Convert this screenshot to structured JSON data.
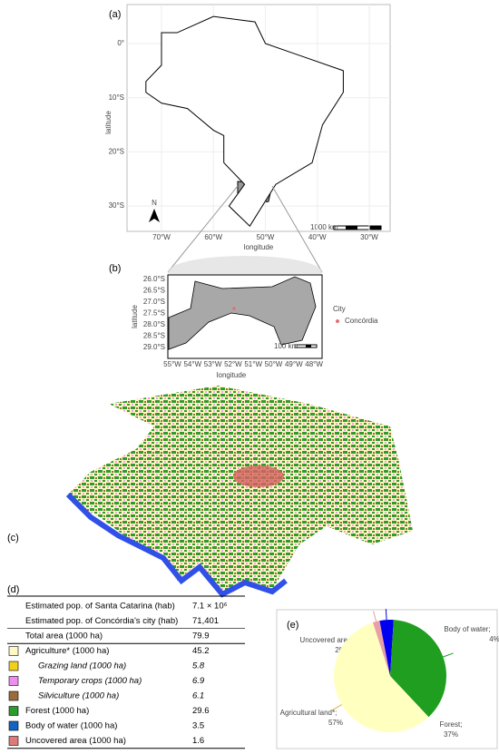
{
  "panel_a": {
    "label": "(a)",
    "x_label": "longitude",
    "y_label": "latitude",
    "xticks": [
      "70°W",
      "60°W",
      "50°W",
      "40°W",
      "30°W"
    ],
    "yticks": [
      "0°",
      "10°S",
      "20°S",
      "30°S"
    ],
    "scale": "1000 km",
    "north": "N"
  },
  "panel_b": {
    "label": "(b)",
    "x_label": "longitude",
    "y_label": "latitude",
    "xticks": [
      "55°W",
      "54°W",
      "53°W",
      "52°W",
      "51°W",
      "50°W",
      "49°W",
      "48°W"
    ],
    "yticks": [
      "26.0°S",
      "26.5°S",
      "27.0°S",
      "27.5°S",
      "28.0°S",
      "28.5°S",
      "29.0°S"
    ],
    "legend_title": "City",
    "legend_entry": "Concórdia",
    "scale": "100 km"
  },
  "panel_c": {
    "label": "(c)"
  },
  "panel_d": {
    "label": "(d)",
    "rows": [
      {
        "label": "Estimated pop. of Santa Catarina (hab)",
        "value": "7.1 × 10⁶"
      },
      {
        "label": "Estimated pop. of Concórdia’s city (hab)",
        "value": "71,401"
      },
      {
        "label": "Total area (1000 ha)",
        "value": "79.9"
      },
      {
        "label": "Agriculture* (1000 ha)",
        "value": "45.2",
        "swatch": "#fff9c4"
      },
      {
        "label": "Grazing land (1000 ha)",
        "value": "5.8",
        "swatch": "#f2cf1c",
        "italic": true
      },
      {
        "label": "Temporary crops (1000 ha)",
        "value": "6.9",
        "swatch": "#f08cf0",
        "italic": true
      },
      {
        "label": "Silviculture (1000 ha)",
        "value": "6.1",
        "swatch": "#9c6b3c",
        "italic": true
      },
      {
        "label": "Forest (1000 ha)",
        "value": "29.6",
        "swatch": "#2e9b2e"
      },
      {
        "label": "Body of water (1000 ha)",
        "value": "3.5",
        "swatch": "#1565c0"
      },
      {
        "label": "Uncovered area (1000 ha)",
        "value": "1.6",
        "swatch": "#e07a7a"
      }
    ]
  },
  "chart_data": {
    "type": "pie",
    "label": "(e)",
    "categories": [
      "Uncovered area;",
      "Body of water;",
      "Forest;",
      "Agricultural land*;"
    ],
    "values": [
      2,
      4,
      37,
      57
    ],
    "value_labels": [
      "2%",
      "4%",
      "37%",
      "57%"
    ],
    "colors": [
      "#e8a0a8",
      "#0000ee",
      "#1f9e1f",
      "#ffffc0"
    ]
  }
}
